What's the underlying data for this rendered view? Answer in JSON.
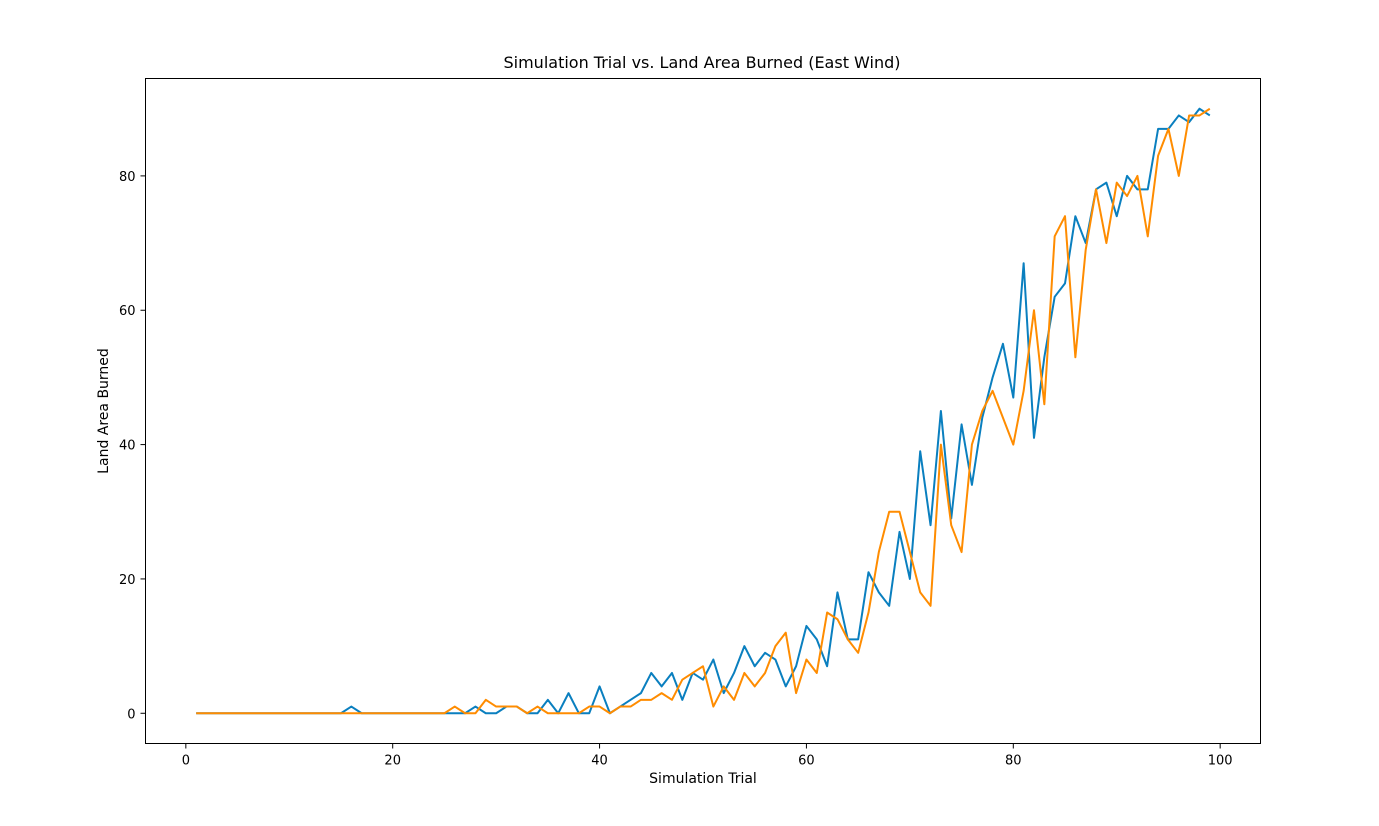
{
  "chart_data": {
    "type": "line",
    "title": "Simulation Trial vs. Land Area Burned (East Wind)",
    "xlabel": "Simulation Trial",
    "ylabel": "Land Area Burned",
    "xlim": [
      -3.9,
      103.9
    ],
    "ylim": [
      -4.5,
      94.5
    ],
    "xticks": [
      0,
      20,
      40,
      60,
      80,
      100
    ],
    "yticks": [
      0,
      20,
      40,
      60,
      80
    ],
    "grid": false,
    "x": [
      1,
      2,
      3,
      4,
      5,
      6,
      7,
      8,
      9,
      10,
      11,
      12,
      13,
      14,
      15,
      16,
      17,
      18,
      19,
      20,
      21,
      22,
      23,
      24,
      25,
      26,
      27,
      28,
      29,
      30,
      31,
      32,
      33,
      34,
      35,
      36,
      37,
      38,
      39,
      40,
      41,
      42,
      43,
      44,
      45,
      46,
      47,
      48,
      49,
      50,
      51,
      52,
      53,
      54,
      55,
      56,
      57,
      58,
      59,
      60,
      61,
      62,
      63,
      64,
      65,
      66,
      67,
      68,
      69,
      70,
      71,
      72,
      73,
      74,
      75,
      76,
      77,
      78,
      79,
      80,
      81,
      82,
      83,
      84,
      85,
      86,
      87,
      88,
      89,
      90,
      91,
      92,
      93,
      94,
      95,
      96,
      97,
      98,
      99
    ],
    "series": [
      {
        "color": "#0a7fbf",
        "values": [
          0,
          0,
          0,
          0,
          0,
          0,
          0,
          0,
          0,
          0,
          0,
          0,
          0,
          0,
          0,
          1,
          0,
          0,
          0,
          0,
          0,
          0,
          0,
          0,
          0,
          0,
          0,
          1,
          0,
          0,
          1,
          1,
          0,
          0,
          2,
          0,
          3,
          0,
          0,
          4,
          0,
          1,
          2,
          3,
          6,
          4,
          6,
          2,
          6,
          5,
          8,
          3,
          6,
          10,
          7,
          9,
          8,
          4,
          7,
          13,
          11,
          7,
          18,
          11,
          11,
          21,
          18,
          16,
          27,
          20,
          39,
          28,
          45,
          29,
          43,
          34,
          44,
          50,
          55,
          47,
          67,
          41,
          53,
          62,
          64,
          74,
          70,
          78,
          79,
          74,
          80,
          78,
          78,
          87,
          87,
          89,
          88,
          90,
          89
        ]
      },
      {
        "color": "#ff8c00",
        "values": [
          0,
          0,
          0,
          0,
          0,
          0,
          0,
          0,
          0,
          0,
          0,
          0,
          0,
          0,
          0,
          0,
          0,
          0,
          0,
          0,
          0,
          0,
          0,
          0,
          0,
          1,
          0,
          0,
          2,
          1,
          1,
          1,
          0,
          1,
          0,
          0,
          0,
          0,
          1,
          1,
          0,
          1,
          1,
          2,
          2,
          3,
          2,
          5,
          6,
          7,
          1,
          4,
          2,
          6,
          4,
          6,
          10,
          12,
          3,
          8,
          6,
          15,
          14,
          11,
          9,
          15,
          24,
          30,
          30,
          24,
          18,
          16,
          40,
          28,
          24,
          40,
          45,
          48,
          44,
          40,
          48,
          60,
          46,
          71,
          74,
          53,
          69,
          78,
          70,
          79,
          77,
          80,
          71,
          83,
          87,
          80,
          89,
          89,
          90
        ]
      }
    ]
  }
}
